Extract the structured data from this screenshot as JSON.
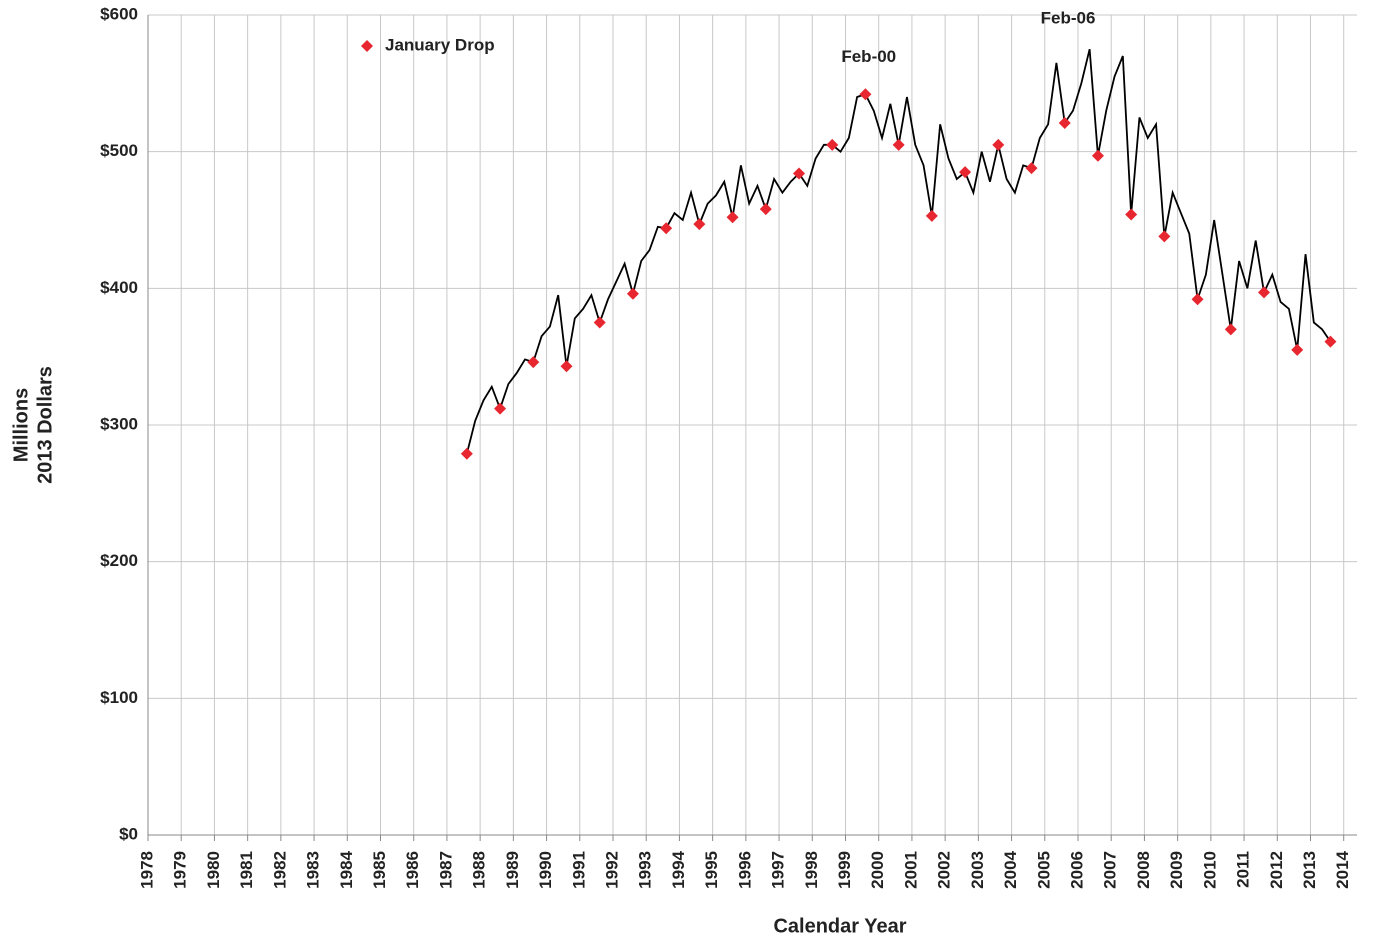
{
  "chart_data": {
    "type": "line",
    "xlabel": "Calendar Year",
    "ylabel": [
      "Millions",
      "2013 Dollars"
    ],
    "xlim": [
      1978,
      2014.4
    ],
    "xticks": [
      1978,
      1979,
      1980,
      1981,
      1982,
      1983,
      1984,
      1985,
      1986,
      1987,
      1988,
      1989,
      1990,
      1991,
      1992,
      1993,
      1994,
      1995,
      1996,
      1997,
      1998,
      1999,
      2000,
      2001,
      2002,
      2003,
      2004,
      2005,
      2006,
      2007,
      2008,
      2009,
      2010,
      2011,
      2012,
      2013,
      2014
    ],
    "ylim": [
      0,
      600
    ],
    "yticks": [
      {
        "value": 0,
        "label": "$0"
      },
      {
        "value": 100,
        "label": "$100"
      },
      {
        "value": 200,
        "label": "$200"
      },
      {
        "value": 300,
        "label": "$300"
      },
      {
        "value": 400,
        "label": "$400"
      },
      {
        "value": 500,
        "label": "$500"
      },
      {
        "value": 600,
        "label": "$600"
      }
    ],
    "grid": true,
    "series": [
      {
        "type": "line",
        "color": "#000000",
        "x": [
          1987.6,
          1987.85,
          1988.1,
          1988.35,
          1988.6,
          1988.85,
          1989.1,
          1989.35,
          1989.6,
          1989.85,
          1990.1,
          1990.35,
          1990.6,
          1990.85,
          1991.1,
          1991.35,
          1991.6,
          1991.85,
          1992.1,
          1992.35,
          1992.6,
          1992.85,
          1993.1,
          1993.35,
          1993.6,
          1993.85,
          1994.1,
          1994.35,
          1994.6,
          1994.85,
          1995.1,
          1995.35,
          1995.6,
          1995.85,
          1996.1,
          1996.35,
          1996.6,
          1996.85,
          1997.1,
          1997.35,
          1997.6,
          1997.85,
          1998.1,
          1998.35,
          1998.6,
          1998.85,
          1999.1,
          1999.35,
          1999.6,
          1999.85,
          2000.1,
          2000.35,
          2000.6,
          2000.85,
          2001.1,
          2001.35,
          2001.6,
          2001.85,
          2002.1,
          2002.35,
          2002.6,
          2002.85,
          2003.1,
          2003.35,
          2003.6,
          2003.85,
          2004.1,
          2004.35,
          2004.6,
          2004.85,
          2005.1,
          2005.35,
          2005.6,
          2005.85,
          2006.1,
          2006.35,
          2006.6,
          2006.85,
          2007.1,
          2007.35,
          2007.6,
          2007.85,
          2008.1,
          2008.35,
          2008.6,
          2008.85,
          2009.1,
          2009.35,
          2009.6,
          2009.85,
          2010.1,
          2010.35,
          2010.6,
          2010.85,
          2011.1,
          2011.35,
          2011.6,
          2011.85,
          2012.1,
          2012.35,
          2012.6,
          2012.85,
          2013.1,
          2013.35,
          2013.6
        ],
        "values": [
          279,
          303,
          318,
          328,
          312,
          330,
          338,
          348,
          346,
          365,
          372,
          395,
          343,
          378,
          385,
          395,
          375,
          392,
          405,
          418,
          396,
          420,
          428,
          445,
          444,
          455,
          450,
          470,
          447,
          462,
          468,
          478,
          452,
          490,
          462,
          475,
          458,
          480,
          470,
          478,
          484,
          475,
          495,
          505,
          505,
          500,
          510,
          540,
          542,
          530,
          510,
          535,
          505,
          540,
          505,
          490,
          453,
          520,
          495,
          480,
          485,
          470,
          500,
          478,
          505,
          480,
          470,
          490,
          488,
          510,
          520,
          565,
          521,
          530,
          550,
          575,
          497,
          530,
          555,
          570,
          454,
          525,
          510,
          520,
          438,
          470,
          455,
          440,
          392,
          410,
          450,
          410,
          370,
          420,
          400,
          435,
          397,
          410,
          390,
          385,
          355,
          425,
          375,
          370,
          361
        ]
      },
      {
        "type": "scatter",
        "name": "January Drop",
        "color": "#e8262f",
        "x": [
          1987.6,
          1988.6,
          1989.6,
          1990.6,
          1991.6,
          1992.6,
          1993.6,
          1994.6,
          1995.6,
          1996.6,
          1997.6,
          1998.6,
          1999.6,
          2000.6,
          2001.6,
          2002.6,
          2003.6,
          2004.6,
          2005.6,
          2006.6,
          2007.6,
          2008.6,
          2009.6,
          2010.6,
          2011.6,
          2012.6,
          2013.6
        ],
        "values": [
          279,
          312,
          346,
          343,
          375,
          396,
          444,
          447,
          452,
          458,
          484,
          505,
          542,
          505,
          453,
          485,
          505,
          488,
          521,
          497,
          454,
          438,
          392,
          370,
          397,
          355,
          361
        ]
      }
    ],
    "annotations": [
      {
        "text": "Feb-00",
        "x": 1999.7,
        "y": 569
      },
      {
        "text": "Feb-06",
        "x": 2005.7,
        "y": 597
      }
    ]
  }
}
